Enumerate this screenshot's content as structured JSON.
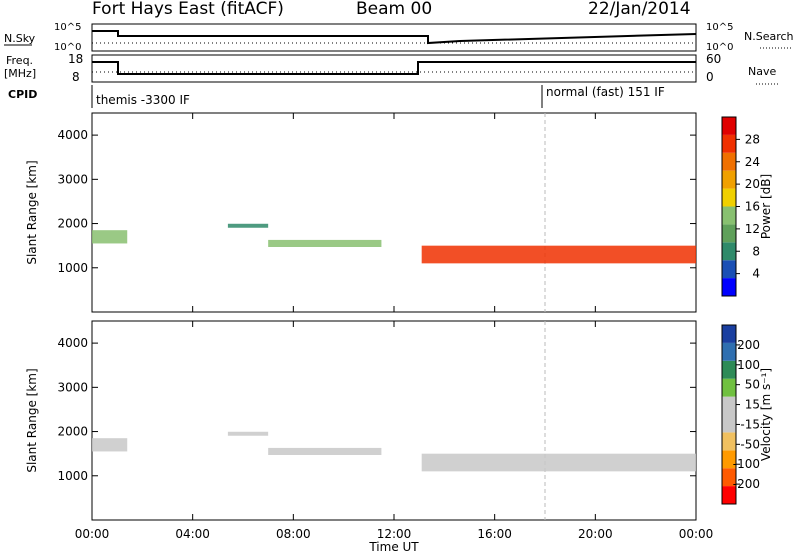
{
  "header": {
    "station": "Fort Hays East (fitACF)",
    "beam": "Beam 00",
    "date": "22/Jan/2014"
  },
  "strip": {
    "nsky_label": "N.Sky",
    "nsky_ticks": [
      "10^5",
      "10^0"
    ],
    "nsearch_label": "N.Search",
    "nsearch_ticks": [
      "10^5",
      "10^0"
    ],
    "freq_label_1": "Freq.",
    "freq_label_2": "[MHz]",
    "freq_ticks": [
      "18",
      "8"
    ],
    "nave_label": "Nave",
    "nave_ticks": [
      "60",
      "0"
    ],
    "cpid_label": "CPID",
    "cpid_left": "themis -3300 IF",
    "cpid_right": "normal (fast) 151 IF"
  },
  "colors": {
    "power_scale": [
      "#0000ff",
      "#1a4fb5",
      "#2f8a6a",
      "#5fa05a",
      "#88c070",
      "#f0d000",
      "#f0a000",
      "#f07000",
      "#f03000",
      "#e00000"
    ],
    "velocity_scale": [
      "#ff0000",
      "#ff5a00",
      "#ff9a00",
      "#f0c060",
      "#c8c8c8",
      "#c8c8c8",
      "#70c040",
      "#2e8b57",
      "#2f6fb0",
      "#1a3fa0"
    ]
  },
  "chart_data": [
    {
      "type": "heatmap",
      "title": "Power",
      "xlabel": "",
      "ylabel": "Slant Range [km]",
      "x_ticks": [
        "00:00",
        "04:00",
        "08:00",
        "12:00",
        "16:00",
        "20:00",
        "00:00"
      ],
      "y_ticks": [
        "1000",
        "2000",
        "3000",
        "4000"
      ],
      "ylim": [
        0,
        4500
      ],
      "colorbar_label": "Power [dB]",
      "colorbar_ticks": [
        "4",
        "8",
        "12",
        "16",
        "20",
        "24",
        "28"
      ],
      "colorbar_range": [
        0,
        30
      ],
      "features": [
        {
          "start_hr": 0.0,
          "end_hr": 1.4,
          "range_km": 1700,
          "width_km": 300,
          "level": 12
        },
        {
          "start_hr": 5.4,
          "end_hr": 7.0,
          "range_km": 1950,
          "width_km": 90,
          "level": 6
        },
        {
          "start_hr": 7.0,
          "end_hr": 11.5,
          "range_km": 1550,
          "width_km": 160,
          "level": 14
        },
        {
          "start_hr": 13.1,
          "end_hr": 24.0,
          "range_km": 1300,
          "width_km": 400,
          "level": 24
        }
      ]
    },
    {
      "type": "heatmap",
      "title": "Velocity",
      "xlabel": "Time UT",
      "ylabel": "Slant Range [km]",
      "x_ticks": [
        "00:00",
        "04:00",
        "08:00",
        "12:00",
        "16:00",
        "20:00",
        "00:00"
      ],
      "y_ticks": [
        "1000",
        "2000",
        "3000",
        "4000"
      ],
      "ylim": [
        0,
        4500
      ],
      "colorbar_label": "Velocity [m s⁻¹]",
      "colorbar_ticks": [
        "-200",
        "-100",
        "-50",
        "-15",
        "15",
        "50",
        "100",
        "200"
      ],
      "colorbar_range": [
        -250,
        250
      ],
      "features": [
        {
          "start_hr": 0.0,
          "end_hr": 1.4,
          "range_km": 1700,
          "width_km": 300,
          "level": 0
        },
        {
          "start_hr": 5.4,
          "end_hr": 7.0,
          "range_km": 1950,
          "width_km": 90,
          "level": 40
        },
        {
          "start_hr": 7.0,
          "end_hr": 11.5,
          "range_km": 1550,
          "width_km": 160,
          "level": 30
        },
        {
          "start_hr": 13.1,
          "end_hr": 24.0,
          "range_km": 1300,
          "width_km": 400,
          "level": 0
        }
      ]
    }
  ]
}
